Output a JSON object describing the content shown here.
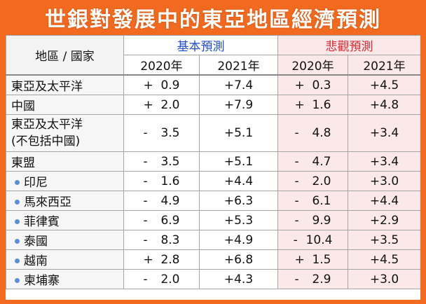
{
  "title": "世銀對發展中的東亞地區經濟預測",
  "header": {
    "region_label": "地區 / 國家",
    "baseline_label": "基本預測",
    "pessimistic_label": "悲觀預測",
    "years": [
      "2020年",
      "2021年",
      "2020年",
      "2021年"
    ]
  },
  "colors": {
    "frame": "#f26a1f",
    "baseline_text": "#1f4fcf",
    "pessimistic_text": "#e0262e",
    "pessimistic_bg": "#fbe9ea",
    "bullet": "#5b8fd6"
  },
  "rows": [
    {
      "name": "東亞及太平洋",
      "sub": false,
      "b2020_sign": "+",
      "b2020": "0.9",
      "b2021": "+7.4",
      "p2020_sign": "+",
      "p2020": "0.3",
      "p2021": "+4.5"
    },
    {
      "name": "中國",
      "sub": false,
      "b2020_sign": "+",
      "b2020": "2.0",
      "b2021": "+7.9",
      "p2020_sign": "+",
      "p2020": "1.6",
      "p2021": "+4.8"
    },
    {
      "name": "東亞及太平洋",
      "name2": "(不包括中國)",
      "sub": false,
      "b2020_sign": "-",
      "b2020": "3.5",
      "b2021": "+5.1",
      "p2020_sign": "-",
      "p2020": "4.8",
      "p2021": "+3.4"
    },
    {
      "name": "東盟",
      "sub": false,
      "b2020_sign": "-",
      "b2020": "3.5",
      "b2021": "+5.1",
      "p2020_sign": "-",
      "p2020": "4.7",
      "p2021": "+3.4"
    },
    {
      "name": "印尼",
      "sub": true,
      "b2020_sign": "-",
      "b2020": "1.6",
      "b2021": "+4.4",
      "p2020_sign": "-",
      "p2020": "2.0",
      "p2021": "+3.0"
    },
    {
      "name": "馬來西亞",
      "sub": true,
      "b2020_sign": "-",
      "b2020": "4.9",
      "b2021": "+6.3",
      "p2020_sign": "-",
      "p2020": "6.1",
      "p2021": "+4.4"
    },
    {
      "name": "菲律賓",
      "sub": true,
      "b2020_sign": "-",
      "b2020": "6.9",
      "b2021": "+5.3",
      "p2020_sign": "-",
      "p2020": "9.9",
      "p2021": "+2.9"
    },
    {
      "name": "泰國",
      "sub": true,
      "b2020_sign": "-",
      "b2020": "8.3",
      "b2021": "+4.9",
      "p2020_sign": "-",
      "p2020": "10.4",
      "p2021": "+3.5"
    },
    {
      "name": "越南",
      "sub": true,
      "b2020_sign": "+",
      "b2020": "2.8",
      "b2021": "+6.8",
      "p2020_sign": "+",
      "p2020": "1.5",
      "p2021": "+4.5"
    },
    {
      "name": "柬埔寨",
      "sub": true,
      "b2020_sign": "-",
      "b2020": "2.0",
      "b2021": "+4.3",
      "p2020_sign": "-",
      "p2020": "2.9",
      "p2021": "+3.0"
    }
  ]
}
